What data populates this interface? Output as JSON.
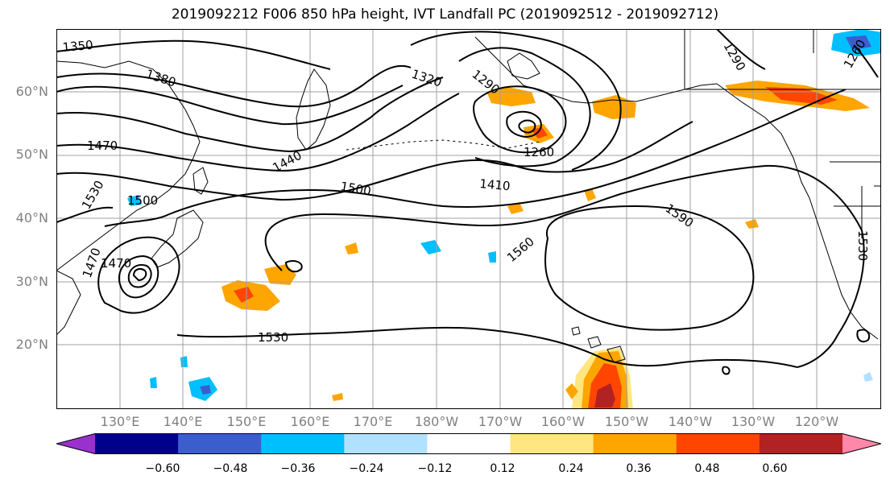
{
  "title": "2019092212 F006 850 hPa height, IVT Landfall PC (2019092512 - 2019092712)",
  "latitude_labels": [
    "60°N",
    "50°N",
    "40°N",
    "30°N",
    "20°N"
  ],
  "longitude_labels": [
    "130°E",
    "140°E",
    "150°E",
    "160°E",
    "170°E",
    "180°W",
    "170°W",
    "160°W",
    "150°W",
    "140°W",
    "130°W",
    "120°W"
  ],
  "contour_labels": [
    "1350",
    "1380",
    "1470",
    "1530",
    "1500",
    "1470",
    "1470",
    "1440",
    "1500",
    "1320",
    "1290",
    "1260",
    "1410",
    "1590",
    "1560",
    "1530",
    "1290",
    "1260",
    "1530"
  ],
  "colorbar": {
    "ticks": [
      "−0.60",
      "−0.48",
      "−0.36",
      "−0.24",
      "−0.12",
      "0.12",
      "0.24",
      "0.36",
      "0.48",
      "0.60"
    ],
    "colors": [
      "#9932cc",
      "#00008b",
      "#3a5fcd",
      "#00bfff",
      "#b0e2ff",
      "#ffffff",
      "#ffe680",
      "#ffa500",
      "#ff4500",
      "#b22222",
      "#ff88aa"
    ]
  },
  "fill_colors": {
    "orange_light": "#ffe680",
    "orange": "#ffa500",
    "orange_red": "#ff4500",
    "dark_red": "#b22222",
    "light_blue": "#b0e2ff",
    "sky_blue": "#00bfff",
    "royal_blue": "#3a5fcd",
    "navy": "#00008b"
  }
}
